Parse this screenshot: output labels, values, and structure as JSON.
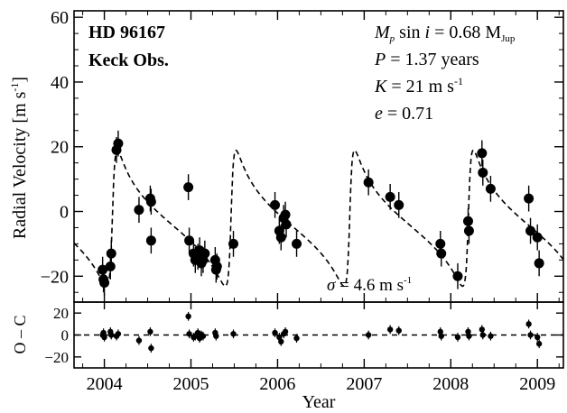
{
  "chart_data": [
    {
      "type": "scatter",
      "panel": "radial-velocity",
      "star_name": "HD 96167",
      "observatory": "Keck Obs.",
      "ylabel": "Radial Velocity [m s",
      "ylabel_sup": "-1",
      "ylabel_end": "]",
      "ylim": [
        -28,
        62
      ],
      "xlim": [
        2003.65,
        2009.3
      ],
      "yticks": [
        -20,
        0,
        20,
        40,
        60
      ],
      "ytick_labels": [
        "−20",
        "0",
        "20",
        "40",
        "60"
      ],
      "grid": false,
      "annotations": {
        "msini_sym": "M",
        "msini_sub": "p",
        "msini_mid": " sin ",
        "msini_i": "i",
        "msini_val": " = 0.68 M",
        "msini_unit_sub": "Jup",
        "period_sym": "P",
        "period_val": " = 1.37 years",
        "amp_sym": "K",
        "amp_val": " = 21 m s",
        "amp_sup": "-1",
        "ecc_sym": "e",
        "ecc_val": " = 0.71",
        "sigma_sym": "σ",
        "sigma_val": " = 4.6 m s",
        "sigma_sup": "-1"
      },
      "series": [
        {
          "kind": "observations",
          "x": [
            2003.98,
            2003.99,
            2004.0,
            2004.07,
            2004.08,
            2004.14,
            2004.16,
            2004.4,
            2004.53,
            2004.54,
            2004.54,
            2004.97,
            2004.98,
            2005.03,
            2005.05,
            2005.08,
            2005.1,
            2005.12,
            2005.14,
            2005.16,
            2005.28,
            2005.29,
            2005.3,
            2005.49,
            2005.97,
            2006.02,
            2006.04,
            2006.07,
            2006.09,
            2006.1,
            2006.22,
            2007.05,
            2007.3,
            2007.4,
            2007.88,
            2007.89,
            2008.08,
            2008.2,
            2008.21,
            2008.36,
            2008.37,
            2008.46,
            2008.9,
            2008.92,
            2009.0,
            2009.02
          ],
          "y": [
            -18,
            -21,
            -22,
            -17,
            -13,
            19,
            21,
            0.5,
            4,
            3,
            -9,
            7.5,
            -9,
            -13,
            -15,
            -14,
            -12,
            -16,
            -15,
            -13,
            -15,
            -18,
            -17,
            -10,
            2,
            -6,
            -8,
            -2,
            -1,
            -4,
            -10,
            9,
            4.5,
            2,
            -10,
            -13,
            -20,
            -3,
            -6,
            18,
            12,
            7,
            4,
            -6,
            -8,
            -16
          ],
          "yerr": 4
        },
        {
          "kind": "keplerian-model",
          "period": 1.37,
          "K": 21,
          "e": 0.71,
          "t_peak": [
            2004.15,
            2005.52,
            2006.89,
            2008.26
          ]
        }
      ]
    },
    {
      "type": "scatter",
      "panel": "residuals",
      "ylabel": "O – C",
      "xlabel": "Year",
      "xticks": [
        2004,
        2005,
        2006,
        2007,
        2008,
        2009
      ],
      "xtick_labels": [
        "2004",
        "2005",
        "2006",
        "2007",
        "2008",
        "2009"
      ],
      "yticks": [
        -20,
        0,
        20
      ],
      "ytick_labels": [
        "−20",
        "0",
        "20"
      ],
      "ylim": [
        -30,
        30
      ],
      "xlim": [
        2003.65,
        2009.3
      ],
      "series": [
        {
          "kind": "residuals",
          "x": [
            2003.98,
            2003.99,
            2004.0,
            2004.07,
            2004.08,
            2004.14,
            2004.16,
            2004.4,
            2004.53,
            2004.54,
            2004.97,
            2004.98,
            2005.03,
            2005.05,
            2005.08,
            2005.1,
            2005.12,
            2005.14,
            2005.28,
            2005.29,
            2005.49,
            2005.97,
            2006.02,
            2006.04,
            2006.07,
            2006.09,
            2006.22,
            2007.05,
            2007.3,
            2007.4,
            2007.88,
            2007.89,
            2008.08,
            2008.2,
            2008.21,
            2008.36,
            2008.37,
            2008.46,
            2008.9,
            2008.92,
            2009.0,
            2009.02
          ],
          "y": [
            0,
            2,
            -2,
            3,
            0,
            -1,
            1,
            -5,
            3,
            -12,
            17,
            1,
            -2,
            -1,
            2,
            -3,
            0,
            -1,
            2,
            -1,
            1,
            2,
            -2,
            -6,
            1,
            3,
            -3,
            0,
            5,
            4,
            3,
            -1,
            -2,
            3,
            -1,
            5,
            0,
            -1,
            10,
            0,
            -2,
            -8
          ],
          "yerr": 4
        }
      ]
    }
  ]
}
